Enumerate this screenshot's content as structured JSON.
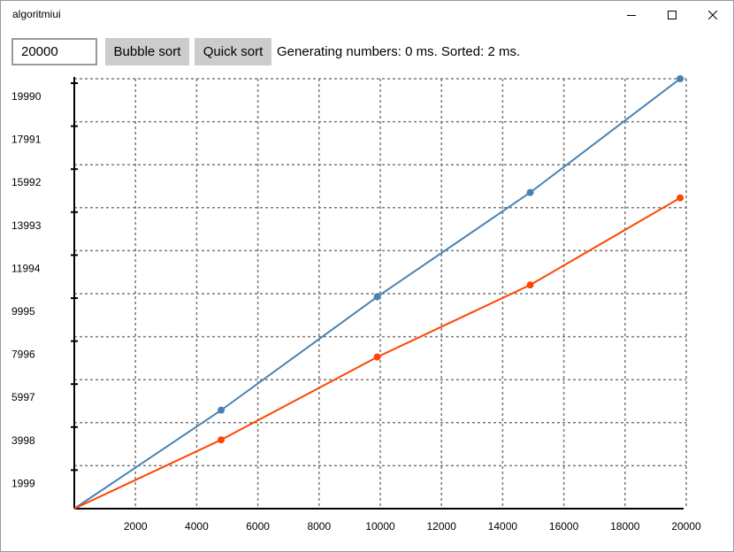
{
  "window": {
    "title": "algoritmiui",
    "controls": {
      "minimize": "minimize-icon",
      "maximize": "maximize-icon",
      "close": "close-icon"
    }
  },
  "toolbar": {
    "count_value": "20000",
    "bubble_label": "Bubble sort",
    "quick_label": "Quick sort",
    "status": "Generating numbers: 0 ms. Sorted: 2 ms."
  },
  "colors": {
    "series_blue": "#4682b4",
    "series_orange": "#ff4500",
    "grid": "#7a7a7a",
    "axis": "#000000"
  },
  "chart_data": {
    "type": "line",
    "title": "",
    "xlabel": "",
    "ylabel": "",
    "xlim": [
      0,
      20000
    ],
    "ylim": [
      0,
      19990
    ],
    "grid": true,
    "x_ticks": [
      "2000",
      "4000",
      "6000",
      "8000",
      "10000",
      "12000",
      "14000",
      "16000",
      "18000",
      "20000"
    ],
    "y_ticks": [
      "1999",
      "3998",
      "5997",
      "7996",
      "9995",
      "11994",
      "13993",
      "15992",
      "17991",
      "19990"
    ],
    "series": [
      {
        "color": "#4682b4",
        "points": [
          {
            "x": 0,
            "y": 0
          },
          {
            "x": 4800,
            "y": 4580
          },
          {
            "x": 9900,
            "y": 9850
          },
          {
            "x": 14900,
            "y": 14700
          },
          {
            "x": 19800,
            "y": 19990
          }
        ]
      },
      {
        "color": "#ff4500",
        "points": [
          {
            "x": 0,
            "y": 0
          },
          {
            "x": 4800,
            "y": 3200
          },
          {
            "x": 9900,
            "y": 7050
          },
          {
            "x": 14900,
            "y": 10400
          },
          {
            "x": 19800,
            "y": 14450
          }
        ]
      }
    ]
  }
}
